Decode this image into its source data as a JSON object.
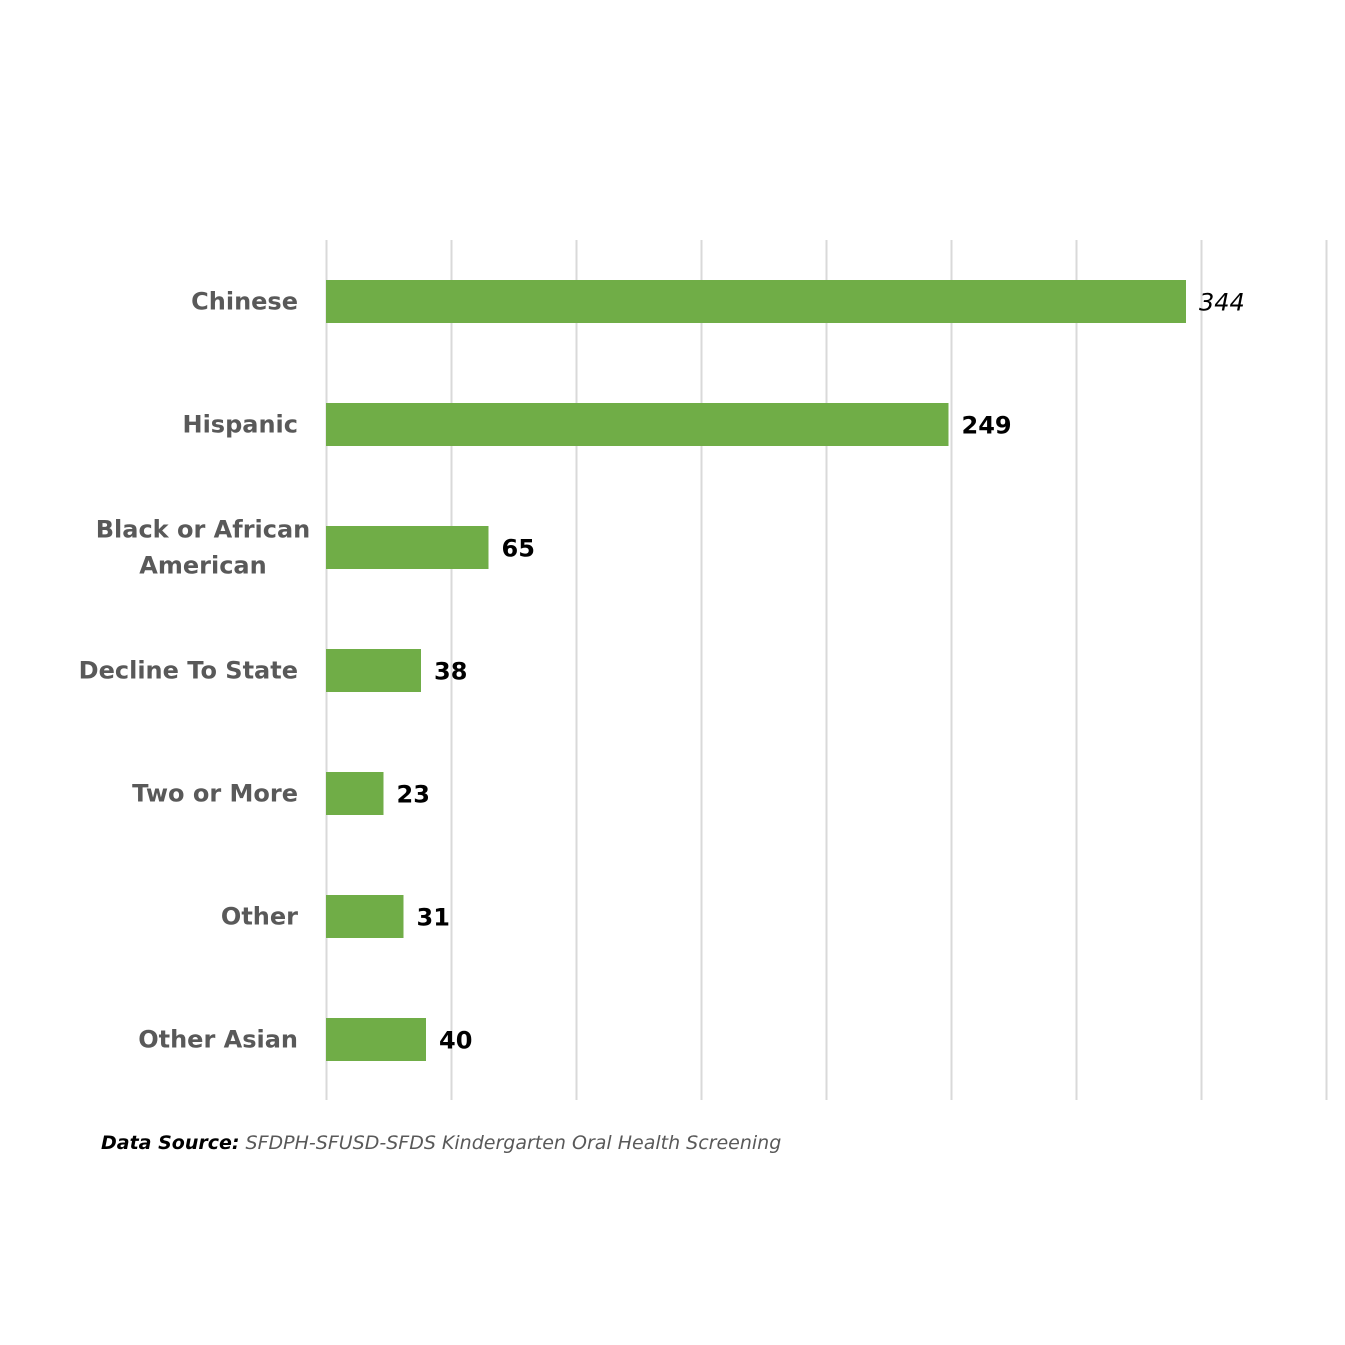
{
  "chart_data": {
    "type": "bar",
    "orientation": "horizontal",
    "categories": [
      "Chinese",
      "Hispanic",
      "Black or African American",
      "Decline To State",
      "Two or More",
      "Other",
      "Other Asian"
    ],
    "category_lines": [
      [
        "Chinese"
      ],
      [
        "Hispanic"
      ],
      [
        "Black or African",
        "American"
      ],
      [
        "Decline To State"
      ],
      [
        "Two or More"
      ],
      [
        "Other"
      ],
      [
        "Other Asian"
      ]
    ],
    "values": [
      344,
      249,
      65,
      38,
      23,
      31,
      40
    ],
    "value_labels": [
      "344",
      "249",
      "65",
      "38",
      "23",
      "31",
      "40"
    ],
    "italic_value_labels": [
      true,
      false,
      false,
      false,
      false,
      false,
      false
    ],
    "xlim": [
      0,
      400
    ],
    "grid_step": 50,
    "grid": true,
    "bar_color": "#70ad47",
    "grid_color": "#d9d9d9",
    "title": "",
    "xlabel": "",
    "ylabel": ""
  },
  "source": {
    "label": "Data Source:",
    "text": "SFDPH-SFUSD-SFDS Kindergarten Oral Health Screening"
  }
}
